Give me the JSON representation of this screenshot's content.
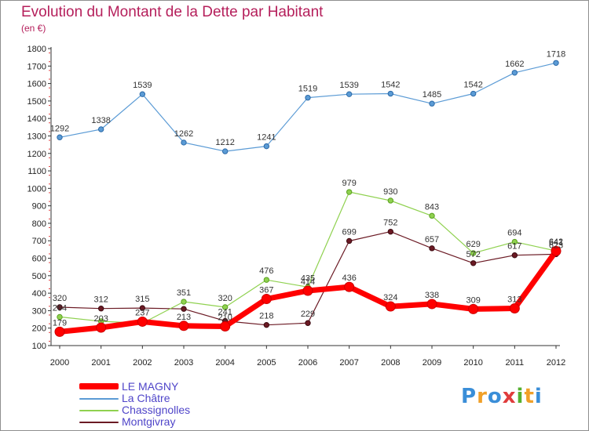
{
  "chart_data": {
    "type": "line",
    "title": "Evolution du Montant de la Dette par Habitant",
    "subtitle": "(en €)",
    "x": [
      "2000",
      "2001",
      "2002",
      "2003",
      "2004",
      "2005",
      "2006",
      "2007",
      "2008",
      "2009",
      "2010",
      "2011",
      "2012"
    ],
    "ylim": [
      100,
      1800
    ],
    "yticks": [
      100,
      200,
      300,
      400,
      500,
      600,
      700,
      800,
      900,
      1000,
      1100,
      1200,
      1300,
      1400,
      1500,
      1600,
      1700,
      1800
    ],
    "grid": false,
    "legend_position": "bottom-left",
    "series": [
      {
        "name": "LE MAGNY",
        "color": "#ff0000",
        "values": [
          179,
          203,
          237,
          213,
          210,
          367,
          414,
          436,
          324,
          338,
          309,
          313,
          641
        ],
        "labels": [
          "179",
          "203",
          "237",
          "213",
          "210",
          "367",
          "414",
          "436",
          "324",
          "338",
          "309",
          "313",
          "641"
        ]
      },
      {
        "name": "La Châtre",
        "color": "#5b9bd5",
        "values": [
          1292,
          1338,
          1539,
          1262,
          1212,
          1241,
          1519,
          1539,
          1542,
          1485,
          1542,
          1662,
          1718
        ],
        "labels": [
          "1292",
          "1338",
          "1539",
          "1262",
          "1212",
          "1241",
          "1519",
          "1539",
          "1542",
          "1485",
          "1542",
          "1662",
          "1718"
        ]
      },
      {
        "name": "Chassignolles",
        "color": "#8fd14f",
        "values": [
          264,
          239,
          228,
          351,
          320,
          476,
          435,
          979,
          930,
          843,
          629,
          694,
          642
        ],
        "labels": [
          "264",
          "",
          "",
          "351",
          "320",
          "476",
          "435",
          "979",
          "930",
          "843",
          "629",
          "694",
          "642"
        ]
      },
      {
        "name": "Montgivray",
        "color": "#6b1a24",
        "values": [
          320,
          312,
          315,
          310,
          241,
          218,
          229,
          699,
          752,
          657,
          572,
          617,
          623
        ],
        "labels": [
          "320",
          "312",
          "315",
          "",
          "241",
          "218",
          "229",
          "699",
          "752",
          "657",
          "572",
          "617",
          "623"
        ]
      }
    ]
  },
  "logo": {
    "letters": [
      "P",
      "r",
      "o",
      "x",
      "i",
      "t",
      "i"
    ],
    "colors": [
      "#3a8ed8",
      "#f0a028",
      "#3a8ed8",
      "#e03c3c",
      "#55b030",
      "#f0a028",
      "#3a8ed8"
    ]
  }
}
